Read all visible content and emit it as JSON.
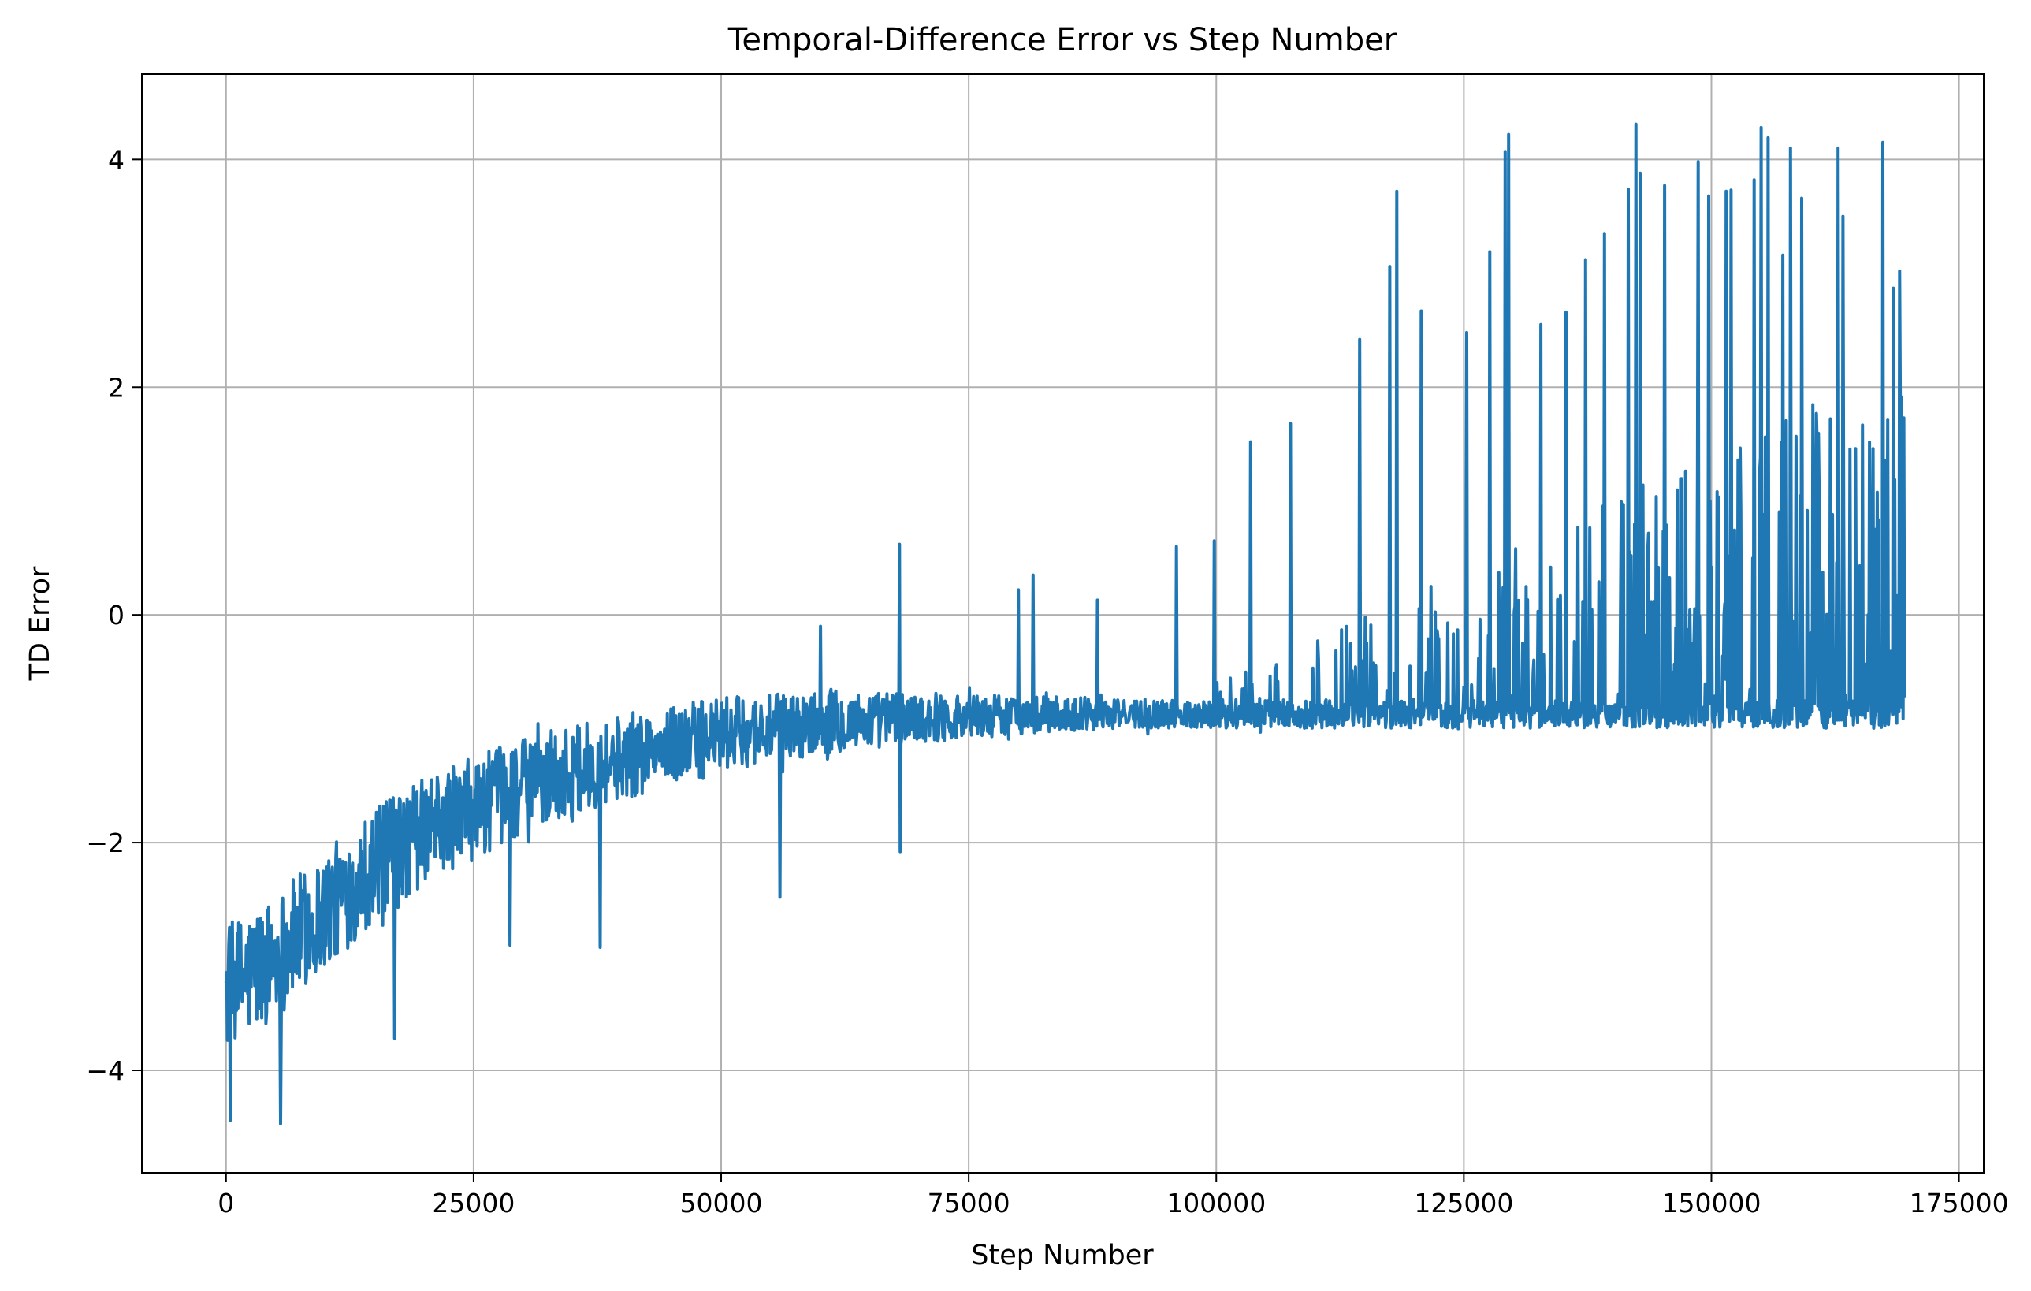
{
  "chart_data": {
    "type": "line",
    "title": "Temporal-Difference Error vs Step Number",
    "xlabel": "Step Number",
    "ylabel": "TD Error",
    "xlim": [
      -8500,
      177500
    ],
    "ylim": [
      -4.9,
      4.75
    ],
    "xticks": [
      0,
      25000,
      50000,
      75000,
      100000,
      125000,
      150000,
      175000
    ],
    "xtick_labels": [
      "0",
      "25000",
      "50000",
      "75000",
      "100000",
      "125000",
      "150000",
      "175000"
    ],
    "yticks": [
      -4,
      -2,
      0,
      2,
      4
    ],
    "ytick_labels": [
      "−4",
      "−2",
      "0",
      "2",
      "4"
    ],
    "grid": true,
    "series_color": "#1f77b4",
    "x_end": 169500,
    "trend": {
      "x": [
        0,
        5000,
        10000,
        15000,
        20000,
        25000,
        30000,
        40000,
        50000,
        60000,
        70000,
        80000,
        90000,
        100000,
        110000,
        120000,
        130000,
        140000,
        150000,
        160000,
        169500
      ],
      "y": [
        -3.3,
        -3.0,
        -2.6,
        -2.2,
        -1.9,
        -1.7,
        -1.5,
        -1.25,
        -1.05,
        -0.95,
        -0.9,
        -0.88,
        -0.87,
        -0.87,
        -0.87,
        -0.87,
        -0.87,
        -0.87,
        -0.87,
        -0.87,
        -0.87
      ]
    },
    "spikes": [
      {
        "x": 68000,
        "y": 0.62
      },
      {
        "x": 68100,
        "y": -2.08
      },
      {
        "x": 60000,
        "y": -0.1
      },
      {
        "x": 55900,
        "y": -2.48
      },
      {
        "x": 37800,
        "y": -2.92
      },
      {
        "x": 28700,
        "y": -2.9
      },
      {
        "x": 17000,
        "y": -3.72
      },
      {
        "x": 5500,
        "y": -4.47
      },
      {
        "x": 400,
        "y": -4.44
      },
      {
        "x": 81500,
        "y": 0.35
      },
      {
        "x": 80000,
        "y": 0.22
      },
      {
        "x": 88000,
        "y": 0.13
      },
      {
        "x": 96000,
        "y": 0.6
      },
      {
        "x": 99800,
        "y": 0.65
      },
      {
        "x": 103500,
        "y": 1.52
      },
      {
        "x": 107500,
        "y": 1.68
      },
      {
        "x": 114500,
        "y": 2.42
      },
      {
        "x": 117500,
        "y": 3.06
      },
      {
        "x": 118200,
        "y": 3.72
      },
      {
        "x": 120700,
        "y": 2.67
      },
      {
        "x": 125300,
        "y": 2.48
      },
      {
        "x": 127600,
        "y": 3.19
      },
      {
        "x": 129200,
        "y": 4.07
      },
      {
        "x": 129500,
        "y": 4.22
      },
      {
        "x": 132800,
        "y": 2.55
      },
      {
        "x": 135300,
        "y": 2.66
      },
      {
        "x": 137300,
        "y": 3.12
      },
      {
        "x": 139200,
        "y": 3.35
      },
      {
        "x": 141600,
        "y": 3.74
      },
      {
        "x": 142400,
        "y": 4.31
      },
      {
        "x": 142800,
        "y": 3.88
      },
      {
        "x": 145300,
        "y": 3.77
      },
      {
        "x": 148700,
        "y": 3.98
      },
      {
        "x": 149700,
        "y": 3.68
      },
      {
        "x": 151500,
        "y": 3.72
      },
      {
        "x": 152000,
        "y": 3.73
      },
      {
        "x": 154300,
        "y": 3.82
      },
      {
        "x": 155000,
        "y": 4.28
      },
      {
        "x": 155700,
        "y": 4.19
      },
      {
        "x": 157200,
        "y": 3.16
      },
      {
        "x": 158000,
        "y": 4.1
      },
      {
        "x": 159100,
        "y": 3.66
      },
      {
        "x": 162800,
        "y": 4.1
      },
      {
        "x": 163300,
        "y": 3.5
      },
      {
        "x": 167300,
        "y": 4.15
      },
      {
        "x": 168400,
        "y": 2.87
      },
      {
        "x": 169000,
        "y": 3.02
      },
      {
        "x": 169400,
        "y": 1.73
      }
    ]
  }
}
